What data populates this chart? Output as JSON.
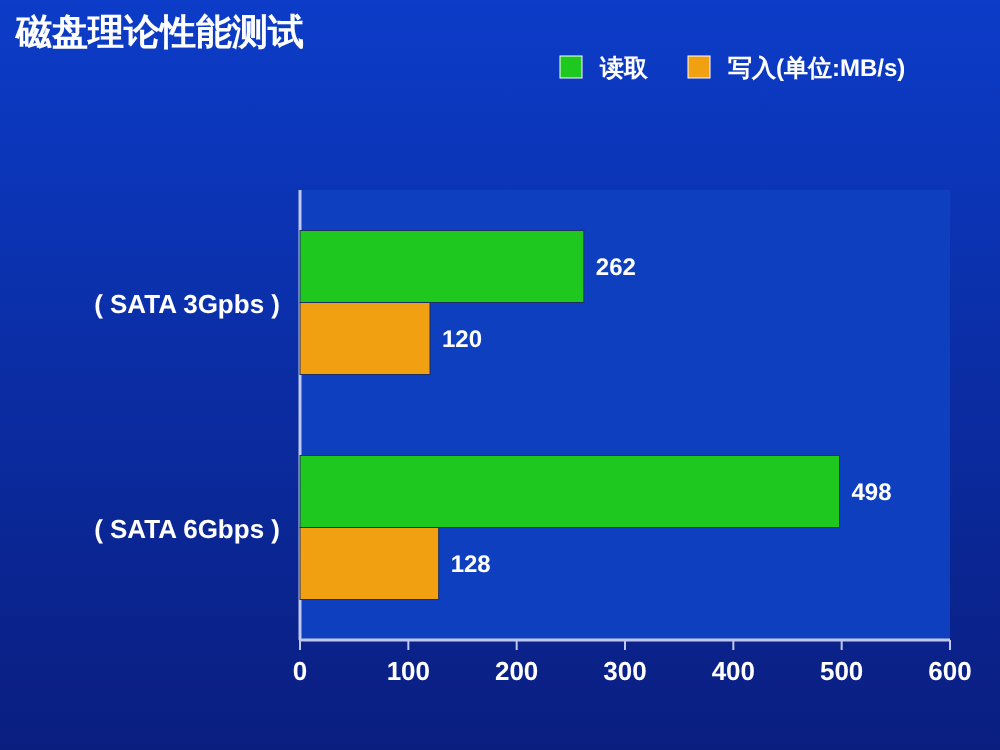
{
  "chart_data": {
    "type": "bar",
    "orientation": "horizontal",
    "title": "磁盘理论性能测试",
    "categories": [
      "( SATA 3Gpbs )",
      "( SATA 6Gbps )"
    ],
    "series": [
      {
        "name": "读取",
        "color": "#1ec81e",
        "values": [
          262,
          498
        ]
      },
      {
        "name": "写入(单位:MB/s)",
        "color": "#f0a010",
        "values": [
          120,
          128
        ]
      }
    ],
    "xlim": [
      0,
      600
    ],
    "xticks": [
      0,
      100,
      200,
      300,
      400,
      500,
      600
    ],
    "data_labels": true,
    "legend": "top right",
    "grid": false
  }
}
